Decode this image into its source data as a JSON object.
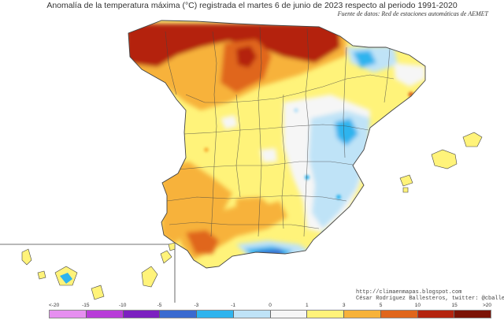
{
  "title": "Anomalía de la temperatura máxima (°C) registrada el martes 6 de junio de 2023 respecto al periodo 1991-2020",
  "source": "Fuente de datos: Red de estaciones automáticas de AEMET",
  "credit": {
    "line1": "http://climaenmapas.blogspot.com",
    "line2": "César Rodríguez Ballesteros, twitter: @cballesteros"
  },
  "legend": {
    "ticks": [
      "<-20",
      "-15",
      "-10",
      "-5",
      "-3",
      "-1",
      "0",
      "1",
      "3",
      "5",
      "10",
      "15",
      ">20"
    ],
    "colors": [
      "#e68ff0",
      "#b83cd8",
      "#7c20c0",
      "#3a6ad0",
      "#2fb4ee",
      "#bfe3f7",
      "#f6f6f6",
      "#fff37a",
      "#f7b23a",
      "#e0661c",
      "#b4240f",
      "#7c1306"
    ]
  },
  "map_colors": {
    "sea": "#ffffff",
    "base": "#fff37a",
    "orange": "#f7b23a",
    "dark_orange": "#e0661c",
    "red": "#b4240f",
    "white": "#f6f6f6",
    "light_blue": "#bfe3f7",
    "cyan": "#2fb4ee",
    "blue": "#3a6ad0",
    "border": "#444444"
  }
}
